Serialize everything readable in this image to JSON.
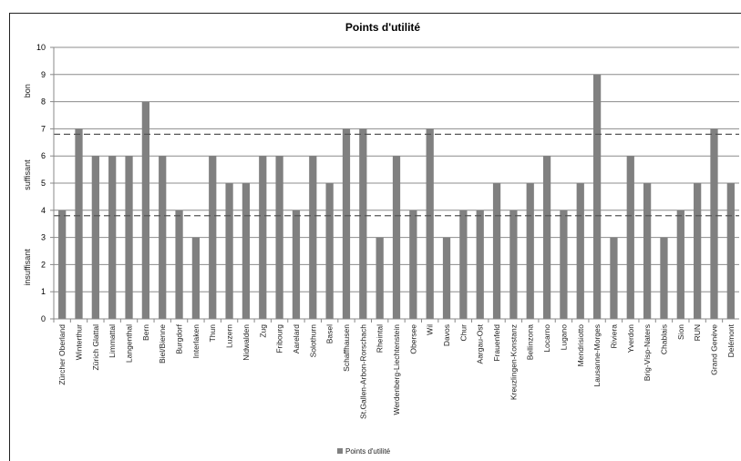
{
  "chart_data": {
    "type": "bar",
    "title": "Points d'utilité",
    "xlabel": "",
    "ylabel": "",
    "ylim": [
      0,
      10
    ],
    "yticks": [
      "0",
      "1",
      "2",
      "3",
      "4",
      "5",
      "6",
      "7",
      "8",
      "9",
      "10"
    ],
    "grid": "horizontal",
    "categories": [
      "Zürcher Oberland",
      "Winterthur",
      "Zürich Glattal",
      "Limmattal",
      "Langenthal",
      "Bern",
      "Biel/Bienne",
      "Burgdorf",
      "Interlaken",
      "Thun",
      "Luzern",
      "Nidwalden",
      "Zug",
      "Fribourg",
      "Aarelard",
      "Solothurn",
      "Basel",
      "Schaffhausen",
      "St.Gallen-Arbon-Rorschach",
      "Rheintal",
      "Werdenberg-Liechtenstein",
      "Obersee",
      "Wil",
      "Davos",
      "Chur",
      "Aargau-Ost",
      "Frauenfeld",
      "Kreuzlingen-Konstanz",
      "Bellinzona",
      "Locarno",
      "Lugano",
      "Mendrisiotto",
      "Lausanne-Morges",
      "Riviera",
      "Yverdon",
      "Brig-Visp-Naters",
      "Chablais",
      "Sion",
      "RUN",
      "Grand Genève",
      "Delémont"
    ],
    "series": [
      {
        "name": "Points d'utilité",
        "values": [
          4,
          7,
          6,
          6,
          6,
          8,
          6,
          4,
          3,
          6,
          5,
          5,
          6,
          6,
          4,
          6,
          5,
          7,
          7,
          3,
          6,
          4,
          7,
          3,
          4,
          4,
          5,
          4,
          5,
          6,
          4,
          5,
          9,
          3,
          6,
          5,
          3,
          4,
          5,
          7,
          5
        ],
        "color": "#808080"
      }
    ],
    "thresholds": [
      {
        "value": 3.8,
        "style": "dashed"
      },
      {
        "value": 6.8,
        "style": "dashed"
      }
    ],
    "bands": [
      {
        "label": "insuffisant",
        "from": 0,
        "to": 3.8
      },
      {
        "label": "suffisant",
        "from": 3.8,
        "to": 6.8
      },
      {
        "label": "bon",
        "from": 6.8,
        "to": 10
      }
    ],
    "legend": {
      "label": "Points d'utilité",
      "placement": "bottom"
    }
  }
}
